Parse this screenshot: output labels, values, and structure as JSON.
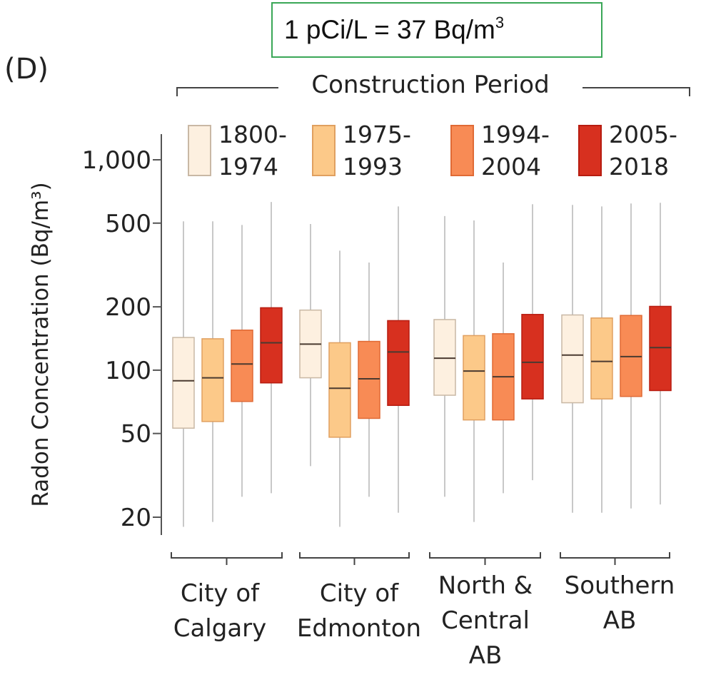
{
  "note": {
    "prefix": "1 pCi/L = 37 Bq/m",
    "superscript": "3"
  },
  "panel_label": "(D)",
  "chart_data": {
    "type": "box",
    "title": "Construction Period",
    "ylabel": "Radon Concentration (Bq/m³)",
    "yscale": "log",
    "ylim": [
      17,
      1400
    ],
    "yticks": [
      20,
      50,
      100,
      200,
      500,
      1000
    ],
    "ytick_labels": [
      "20",
      "50",
      "100",
      "200",
      "500",
      "1,000"
    ],
    "categories": [
      {
        "lines": [
          "City of",
          "Calgary"
        ]
      },
      {
        "lines": [
          "City of",
          "Edmonton"
        ]
      },
      {
        "lines": [
          "North &",
          "Central",
          "AB"
        ]
      },
      {
        "lines": [
          "Southern",
          "AB"
        ]
      }
    ],
    "series": [
      {
        "name": "1800-1974",
        "legend_lines": [
          "1800-",
          "1974"
        ],
        "color": "#fdf0e0",
        "edge": "#c9b8a5",
        "boxes": [
          {
            "min": 18,
            "q1": 53,
            "median": 89,
            "q3": 143,
            "max": 510
          },
          {
            "min": 35,
            "q1": 92,
            "median": 133,
            "q3": 193,
            "max": 495
          },
          {
            "min": 25,
            "q1": 76,
            "median": 114,
            "q3": 174,
            "max": 540
          },
          {
            "min": 21,
            "q1": 70,
            "median": 118,
            "q3": 183,
            "max": 610
          }
        ]
      },
      {
        "name": "1975-1993",
        "legend_lines": [
          "1975-",
          "1993"
        ],
        "color": "#fcc989",
        "edge": "#e0a060",
        "boxes": [
          {
            "min": 19,
            "q1": 57,
            "median": 92,
            "q3": 141,
            "max": 510
          },
          {
            "min": 18,
            "q1": 48,
            "median": 82,
            "q3": 135,
            "max": 370
          },
          {
            "min": 19,
            "q1": 58,
            "median": 99,
            "q3": 146,
            "max": 515
          },
          {
            "min": 21,
            "q1": 73,
            "median": 110,
            "q3": 177,
            "max": 600
          }
        ]
      },
      {
        "name": "1994-2004",
        "legend_lines": [
          "1994-",
          "2004"
        ],
        "color": "#f88b55",
        "edge": "#e06a35",
        "boxes": [
          {
            "min": 25,
            "q1": 71,
            "median": 107,
            "q3": 155,
            "max": 490
          },
          {
            "min": 25,
            "q1": 59,
            "median": 91,
            "q3": 137,
            "max": 325
          },
          {
            "min": 26,
            "q1": 58,
            "median": 93,
            "q3": 149,
            "max": 325
          },
          {
            "min": 22,
            "q1": 75,
            "median": 116,
            "q3": 182,
            "max": 620
          }
        ]
      },
      {
        "name": "2005-2018",
        "legend_lines": [
          "2005-",
          "2018"
        ],
        "color": "#d7301f",
        "edge": "#b71c10",
        "boxes": [
          {
            "min": 26,
            "q1": 87,
            "median": 135,
            "q3": 198,
            "max": 630
          },
          {
            "min": 21,
            "q1": 68,
            "median": 122,
            "q3": 172,
            "max": 600
          },
          {
            "min": 30,
            "q1": 73,
            "median": 109,
            "q3": 184,
            "max": 615
          },
          {
            "min": 23,
            "q1": 80,
            "median": 128,
            "q3": 201,
            "max": 625
          }
        ]
      }
    ],
    "legend_position": "top",
    "grid": false
  }
}
